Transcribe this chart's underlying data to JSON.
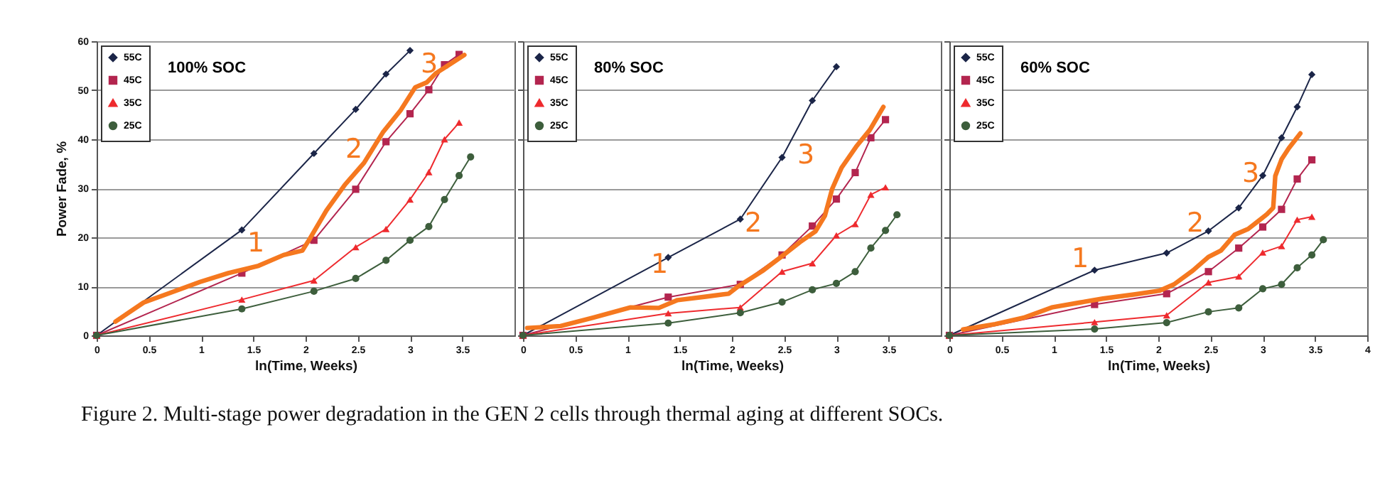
{
  "chart_data": [
    {
      "type": "line",
      "title": "100% SOC",
      "xlabel": "ln(Time, Weeks)",
      "ylabel": "Power Fade, %",
      "xlim": [
        0,
        4
      ],
      "xticks": [
        0,
        0.5,
        1,
        1.5,
        2,
        2.5,
        3,
        3.5
      ],
      "ylim": [
        0,
        60
      ],
      "yticks": [
        0,
        10,
        20,
        30,
        40,
        50,
        60
      ],
      "grid": "y",
      "legend": "top left",
      "series": [
        {
          "name": "55C",
          "color": "#1b2548",
          "marker": "diamond",
          "x": [
            0,
            1.39,
            2.08,
            2.48,
            2.77,
            3.0
          ],
          "values": [
            0,
            21.5,
            37.1,
            46.1,
            53.3,
            58.1
          ]
        },
        {
          "name": "45C",
          "color": "#b3254f",
          "marker": "square",
          "x": [
            0,
            1.39,
            2.08,
            2.48,
            2.77,
            3.0,
            3.18,
            3.33,
            3.47
          ],
          "values": [
            0,
            12.7,
            19.4,
            29.8,
            39.5,
            45.2,
            50.1,
            55.2,
            57.3
          ]
        },
        {
          "name": "35C",
          "color": "#ee2a2e",
          "marker": "triangle",
          "x": [
            0,
            1.39,
            2.08,
            2.48,
            2.77,
            3.0,
            3.18,
            3.33,
            3.47
          ],
          "values": [
            0,
            7.3,
            11.2,
            18.0,
            21.7,
            27.7,
            33.3,
            40.0,
            43.4
          ]
        },
        {
          "name": "25C",
          "color": "#3d5e3c",
          "marker": "circle",
          "x": [
            0,
            1.39,
            2.08,
            2.48,
            2.77,
            3.0,
            3.18,
            3.33,
            3.47,
            3.58
          ],
          "values": [
            0,
            5.4,
            9.0,
            11.6,
            15.3,
            19.4,
            22.2,
            27.7,
            32.6,
            36.4
          ]
        },
        {
          "type": "line",
          "color": "#f5781f",
          "marker": "none",
          "x": [
            0.18,
            0.45,
            0.99,
            1.26,
            1.55,
            1.79,
            1.97,
            2.04,
            2.2,
            2.38,
            2.56,
            2.74,
            2.91,
            3.05,
            3.16,
            3.25,
            3.36,
            3.52
          ],
          "values": [
            2.8,
            6.7,
            10.9,
            12.7,
            14.2,
            16.4,
            17.3,
            19.7,
            25.5,
            30.8,
            35.2,
            41.4,
            45.9,
            50.6,
            51.6,
            53.5,
            55.0,
            57.2
          ]
        }
      ],
      "annotations": [
        "1",
        "2",
        "3"
      ]
    },
    {
      "type": "line",
      "title": "80% SOC",
      "xlabel": "ln(Time, Weeks)",
      "xlim": [
        0,
        4
      ],
      "xticks": [
        0,
        0.5,
        1,
        1.5,
        2,
        2.5,
        3,
        3.5
      ],
      "ylim": [
        0,
        60
      ],
      "yticks": [
        0,
        10,
        20,
        30,
        40,
        50,
        60
      ],
      "tick_labels": "x",
      "grid": "y",
      "legend": "top left",
      "series": [
        {
          "name": "55C",
          "color": "#1b2548",
          "marker": "diamond",
          "x": [
            0,
            1.39,
            2.08,
            2.48,
            2.77,
            3.0
          ],
          "values": [
            0,
            15.9,
            23.7,
            36.3,
            47.9,
            54.8
          ]
        },
        {
          "name": "45C",
          "color": "#b3254f",
          "marker": "square",
          "x": [
            0,
            1.39,
            2.08,
            2.48,
            2.77,
            3.0,
            3.18,
            3.33,
            3.47
          ],
          "values": [
            0,
            7.8,
            10.4,
            16.4,
            22.3,
            27.8,
            33.2,
            40.3,
            44.0
          ]
        },
        {
          "name": "35C",
          "color": "#ee2a2e",
          "marker": "triangle",
          "x": [
            0,
            1.39,
            2.08,
            2.48,
            2.77,
            3.0,
            3.18,
            3.33,
            3.47
          ],
          "values": [
            0,
            4.5,
            5.7,
            13.0,
            14.7,
            20.4,
            22.7,
            28.7,
            30.2
          ]
        },
        {
          "name": "25C",
          "color": "#3d5e3c",
          "marker": "circle",
          "x": [
            0,
            1.39,
            2.08,
            2.48,
            2.77,
            3.0,
            3.18,
            3.33,
            3.47,
            3.58
          ],
          "values": [
            0,
            2.5,
            4.6,
            6.8,
            9.3,
            10.6,
            13.0,
            17.8,
            21.4,
            24.6
          ]
        },
        {
          "type": "line",
          "color": "#f5781f",
          "marker": "none",
          "x": [
            0.04,
            0.36,
            0.67,
            1.03,
            1.3,
            1.48,
            1.75,
            1.97,
            2.06,
            2.29,
            2.47,
            2.65,
            2.8,
            2.89,
            2.96,
            3.05,
            3.19,
            3.32,
            3.45
          ],
          "values": [
            1.5,
            1.9,
            3.6,
            5.7,
            5.6,
            7.2,
            7.9,
            8.5,
            10.0,
            13.1,
            16.0,
            19.0,
            21.2,
            24.4,
            29.9,
            34.2,
            38.5,
            41.9,
            46.6
          ]
        }
      ],
      "annotations": [
        "1",
        "2",
        "3"
      ]
    },
    {
      "type": "line",
      "title": "60% SOC",
      "xlabel": "ln(Time, Weeks)",
      "xlim": [
        0,
        4
      ],
      "xticks": [
        0,
        0.5,
        1,
        1.5,
        2,
        2.5,
        3,
        3.5,
        4
      ],
      "ylim": [
        0,
        60
      ],
      "yticks": [
        0,
        10,
        20,
        30,
        40,
        50,
        60
      ],
      "tick_labels": "x",
      "grid": "y",
      "legend": "top left",
      "series": [
        {
          "name": "55C",
          "color": "#1b2548",
          "marker": "diamond",
          "x": [
            0,
            1.39,
            2.08,
            2.48,
            2.77,
            3.0,
            3.18,
            3.33,
            3.47
          ],
          "values": [
            0,
            13.3,
            16.8,
            21.3,
            26.0,
            32.6,
            40.3,
            46.6,
            53.2
          ]
        },
        {
          "name": "45C",
          "color": "#b3254f",
          "marker": "square",
          "x": [
            0,
            1.39,
            2.08,
            2.48,
            2.77,
            3.0,
            3.18,
            3.33,
            3.47
          ],
          "values": [
            0,
            6.3,
            8.5,
            13.0,
            17.8,
            22.1,
            25.7,
            31.9,
            35.8
          ]
        },
        {
          "name": "35C",
          "color": "#ee2a2e",
          "marker": "triangle",
          "x": [
            0,
            1.39,
            2.08,
            2.48,
            2.77,
            3.0,
            3.18,
            3.33,
            3.47
          ],
          "values": [
            0,
            2.7,
            4.1,
            10.8,
            12.0,
            16.9,
            18.2,
            23.6,
            24.2
          ]
        },
        {
          "name": "25C",
          "color": "#3d5e3c",
          "marker": "circle",
          "x": [
            0,
            1.39,
            2.08,
            2.48,
            2.77,
            3.0,
            3.18,
            3.33,
            3.47,
            3.58
          ],
          "values": [
            0,
            1.3,
            2.6,
            4.8,
            5.6,
            9.5,
            10.4,
            13.8,
            16.4,
            19.5
          ]
        },
        {
          "type": "line",
          "color": "#f5781f",
          "marker": "none",
          "x": [
            0.13,
            0.44,
            0.71,
            0.98,
            1.25,
            1.47,
            1.79,
            2.01,
            2.15,
            2.33,
            2.48,
            2.6,
            2.73,
            2.86,
            3.04,
            3.1,
            3.12,
            3.18,
            3.25,
            3.36
          ],
          "values": [
            1.2,
            2.3,
            3.6,
            5.7,
            6.7,
            7.5,
            8.4,
            9.1,
            10.4,
            13.2,
            16.0,
            17.3,
            20.5,
            21.7,
            24.7,
            26.0,
            32.5,
            35.9,
            38.2,
            41.2
          ]
        }
      ],
      "annotations": [
        "1",
        "2",
        "3"
      ]
    },
    {
      "type": "other",
      "annotations": [
        "Figure 2. Multi-stage power degradation in the GEN 2 cells through thermal aging at different SOCs."
      ]
    }
  ]
}
